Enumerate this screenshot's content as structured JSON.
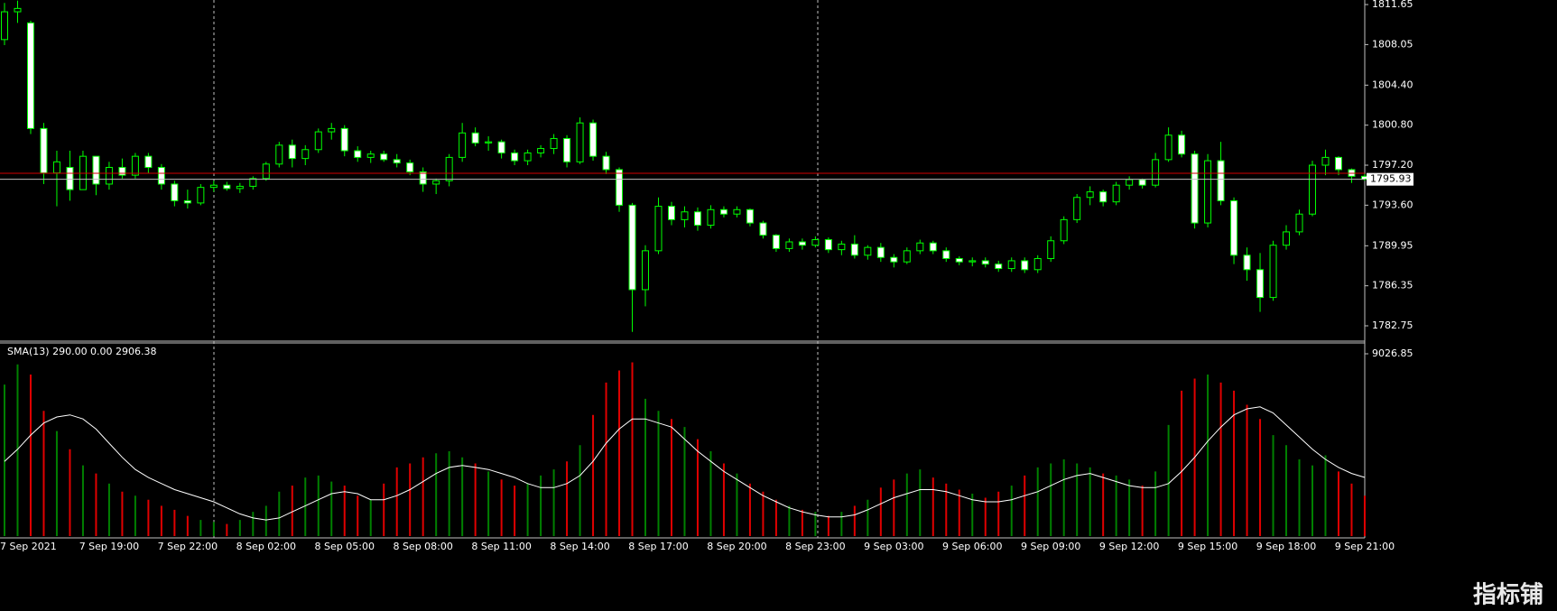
{
  "chart_data": {
    "type": "candlestick",
    "categories": [
      "7 Sep 2021",
      null,
      null,
      null,
      null,
      null,
      null,
      null,
      "7 Sep 19:00",
      null,
      null,
      null,
      null,
      null,
      "7 Sep 22:00",
      null,
      null,
      null,
      null,
      null,
      "8 Sep 02:00",
      null,
      null,
      null,
      null,
      null,
      "8 Sep 05:00",
      null,
      null,
      null,
      null,
      null,
      "8 Sep 08:00",
      null,
      null,
      null,
      null,
      null,
      "8 Sep 11:00",
      null,
      null,
      null,
      null,
      null,
      "8 Sep 14:00",
      null,
      null,
      null,
      null,
      null,
      "8 Sep 17:00",
      null,
      null,
      null,
      null,
      null,
      "8 Sep 20:00",
      null,
      null,
      null,
      null,
      null,
      "8 Sep 23:00",
      null,
      null,
      null,
      null,
      null,
      "9 Sep 03:00",
      null,
      null,
      null,
      null,
      null,
      "9 Sep 06:00",
      null,
      null,
      null,
      null,
      null,
      "9 Sep 09:00",
      null,
      null,
      null,
      null,
      null,
      "9 Sep 12:00",
      null,
      null,
      null,
      null,
      null,
      "9 Sep 15:00",
      null,
      null,
      null,
      null,
      null,
      "9 Sep 18:00",
      null,
      null,
      null,
      null,
      null,
      "9 Sep 21:00"
    ],
    "open": [
      1808.5,
      1811,
      1810,
      1800.5,
      1796.5,
      1797,
      1795,
      1798,
      1795.5,
      1797,
      1796.3,
      1798,
      1797,
      1795.5,
      1794,
      1793.8,
      1795.2,
      1795.4,
      1795.1,
      1795.3,
      1796,
      1797.3,
      1799,
      1797.8,
      1798.6,
      1800.2,
      1800.5,
      1798.5,
      1797.9,
      1798.2,
      1797.7,
      1797.4,
      1796.6,
      1795.5,
      1795.8,
      1797.9,
      1800.1,
      1799.2,
      1799.3,
      1798.3,
      1797.6,
      1798.3,
      1798.7,
      1799.6,
      1797.5,
      1801,
      1798,
      1796.8,
      1793.6,
      1786,
      1789.5,
      1793.5,
      1792.3,
      1793,
      1791.8,
      1793.2,
      1792.8,
      1793.2,
      1792,
      1790.9,
      1789.7,
      1790.3,
      1790,
      1790.5,
      1789.6,
      1790.1,
      1789.1,
      1789.8,
      1788.9,
      1788.5,
      1789.5,
      1790.2,
      1789.5,
      1788.8,
      1788.5,
      1788.6,
      1788.3,
      1787.9,
      1788.6,
      1787.8,
      1788.8,
      1790.4,
      1792.3,
      1794.3,
      1794.8,
      1793.9,
      1795.4,
      1795.9,
      1795.4,
      1797.7,
      1799.9,
      1798.2,
      1792,
      1797.6,
      1794,
      1789.1,
      1787.8,
      1785.3,
      1790,
      1791.2,
      1792.8,
      1797.2,
      1797.9,
      1796.8,
      1796.2
    ],
    "high": [
      1811.8,
      1812,
      1810.2,
      1801,
      1798.5,
      1798.5,
      1798.5,
      1798,
      1797.5,
      1797.8,
      1798.3,
      1798.3,
      1797.3,
      1795.8,
      1795,
      1795.5,
      1795.8,
      1795.7,
      1795.6,
      1796.2,
      1797.5,
      1799.3,
      1799.5,
      1799,
      1800.5,
      1801,
      1800.8,
      1798.9,
      1798.5,
      1798.5,
      1798.2,
      1797.7,
      1797,
      1796,
      1798.2,
      1801,
      1800.6,
      1799.8,
      1799.5,
      1798.6,
      1798.6,
      1799,
      1800,
      1799.9,
      1801.5,
      1801.3,
      1798.4,
      1797,
      1793.8,
      1790,
      1794.3,
      1793.9,
      1793.5,
      1793.4,
      1793.6,
      1793.5,
      1793.5,
      1793.3,
      1792.2,
      1791,
      1790.6,
      1790.6,
      1790.8,
      1790.7,
      1790.4,
      1790.9,
      1790,
      1790.2,
      1789.2,
      1789.8,
      1790.5,
      1790.4,
      1789.8,
      1789,
      1788.9,
      1788.9,
      1788.6,
      1788.9,
      1788.9,
      1789.1,
      1790.8,
      1792.6,
      1794.6,
      1795.3,
      1795,
      1795.7,
      1796.2,
      1796,
      1798.3,
      1800.6,
      1800.3,
      1798.5,
      1798.2,
      1799.3,
      1794.3,
      1789.8,
      1789.3,
      1790.4,
      1791.8,
      1793.2,
      1797.6,
      1798.6,
      1798,
      1796.9,
      1796.4
    ],
    "low": [
      1808,
      1810,
      1800,
      1795.5,
      1793.5,
      1794,
      1795,
      1794.5,
      1795,
      1796,
      1796,
      1796.5,
      1795,
      1793.5,
      1793.3,
      1793.6,
      1794.8,
      1794.9,
      1794.7,
      1795,
      1795.8,
      1797,
      1797,
      1797.2,
      1798.3,
      1799.5,
      1798,
      1797.5,
      1797.4,
      1797.5,
      1797,
      1796.3,
      1794.8,
      1794.6,
      1795.3,
      1797.5,
      1798.9,
      1798.5,
      1797.8,
      1797.2,
      1797.2,
      1797.9,
      1798.2,
      1797,
      1797.3,
      1797.6,
      1796.4,
      1793,
      1782.2,
      1784.5,
      1789.2,
      1791.8,
      1791.6,
      1791.3,
      1791.5,
      1792.5,
      1792.5,
      1791.7,
      1790.6,
      1789.4,
      1789.4,
      1789.6,
      1789.8,
      1789.3,
      1789.1,
      1788.8,
      1788.7,
      1788.5,
      1788,
      1788.3,
      1789.2,
      1789.2,
      1788.5,
      1788.2,
      1788.1,
      1788,
      1787.6,
      1787.6,
      1787.5,
      1787.5,
      1788.5,
      1790.1,
      1792,
      1793.6,
      1793.5,
      1793.6,
      1795,
      1795.1,
      1795.2,
      1797.5,
      1797.9,
      1791.5,
      1791.6,
      1793.6,
      1788.3,
      1786.8,
      1784,
      1785,
      1789.6,
      1790.9,
      1792.6,
      1796.3,
      1796.3,
      1795.6,
      1795.8
    ],
    "close": [
      1811,
      1811.3,
      1800.5,
      1796.5,
      1797.5,
      1795,
      1798,
      1795.5,
      1797,
      1796.3,
      1798,
      1797,
      1795.5,
      1794,
      1793.8,
      1795.2,
      1795.4,
      1795.1,
      1795.3,
      1796,
      1797.3,
      1799,
      1797.8,
      1798.6,
      1800.2,
      1800.5,
      1798.5,
      1797.9,
      1798.2,
      1797.7,
      1797.4,
      1796.6,
      1795.5,
      1795.8,
      1797.9,
      1800.1,
      1799.2,
      1799.3,
      1798.3,
      1797.6,
      1798.3,
      1798.7,
      1799.6,
      1797.5,
      1801,
      1798,
      1796.8,
      1793.6,
      1786,
      1789.5,
      1793.5,
      1792.3,
      1793,
      1791.8,
      1793.2,
      1792.8,
      1793.2,
      1792,
      1790.9,
      1789.7,
      1790.3,
      1790,
      1790.5,
      1789.6,
      1790.1,
      1789.1,
      1789.8,
      1788.9,
      1788.5,
      1789.5,
      1790.2,
      1789.5,
      1788.8,
      1788.5,
      1788.6,
      1788.3,
      1787.9,
      1788.6,
      1787.8,
      1788.8,
      1790.4,
      1792.3,
      1794.3,
      1794.8,
      1793.9,
      1795.4,
      1795.9,
      1795.4,
      1797.7,
      1799.9,
      1798.2,
      1792,
      1797.6,
      1794,
      1789.1,
      1787.8,
      1785.3,
      1790,
      1791.2,
      1792.8,
      1797.2,
      1797.9,
      1796.8,
      1796.2,
      1795.93
    ],
    "candle_color": "#00ff00",
    "bear_fill": "#ffffff",
    "ylim": [
      1781.45,
      1812.06
    ],
    "yticks": [
      1811.65,
      1808.05,
      {
        "value": 1804.4,
        "label": "1804.40"
      },
      {
        "value": 1800.8,
        "label": "1800.80"
      },
      {
        "value": 1797.2,
        "label": "1797.20"
      },
      {
        "value": 1793.6,
        "label": "1793.60"
      },
      1789.95,
      1786.35,
      1782.75
    ],
    "last_price": 1795.93,
    "ask_price": 1796.47,
    "ask_color": "#d00000",
    "volume_panel": {
      "label": "SMA(13) 290.00 0.00 2906.38",
      "volumes": [
        7500,
        8500,
        8000,
        6200,
        5200,
        4300,
        3500,
        3100,
        2600,
        2200,
        2000,
        1800,
        1500,
        1300,
        1000,
        800,
        700,
        600,
        800,
        1200,
        1500,
        2200,
        2500,
        2900,
        3000,
        2700,
        2500,
        2000,
        1800,
        2600,
        3400,
        3600,
        3900,
        4100,
        4200,
        3900,
        3600,
        3200,
        2800,
        2500,
        2600,
        3000,
        3300,
        3700,
        4500,
        6000,
        7600,
        8200,
        8600,
        6800,
        6200,
        5800,
        5400,
        4800,
        4200,
        3600,
        3100,
        2600,
        2200,
        1800,
        1500,
        1300,
        1200,
        1000,
        1200,
        1500,
        1800,
        2400,
        2800,
        3100,
        3300,
        2900,
        2600,
        2300,
        2100,
        1900,
        2200,
        2500,
        3000,
        3400,
        3600,
        3800,
        3600,
        3400,
        3100,
        3000,
        2800,
        2500,
        3200,
        5500,
        7200,
        7800,
        8000,
        7600,
        7200,
        6500,
        5800,
        5000,
        4500,
        3800,
        3500,
        4000,
        3200,
        2600,
        2000
      ],
      "up_color": "#008000",
      "down_color": "#e00000",
      "sma": [
        3700,
        4300,
        5000,
        5600,
        5900,
        6000,
        5800,
        5300,
        4600,
        3900,
        3300,
        2900,
        2600,
        2300,
        2100,
        1900,
        1700,
        1400,
        1100,
        900,
        800,
        900,
        1200,
        1500,
        1800,
        2100,
        2200,
        2100,
        1800,
        1800,
        2000,
        2300,
        2700,
        3100,
        3400,
        3500,
        3400,
        3300,
        3100,
        2900,
        2600,
        2400,
        2400,
        2600,
        3000,
        3700,
        4600,
        5300,
        5800,
        5800,
        5600,
        5400,
        4800,
        4200,
        3700,
        3200,
        2800,
        2400,
        2000,
        1700,
        1400,
        1200,
        1050,
        950,
        950,
        1050,
        1300,
        1600,
        1900,
        2100,
        2300,
        2300,
        2200,
        2000,
        1800,
        1700,
        1700,
        1800,
        2000,
        2200,
        2500,
        2800,
        3000,
        3100,
        2900,
        2700,
        2500,
        2400,
        2400,
        2600,
        3200,
        3900,
        4700,
        5400,
        6000,
        6300,
        6400,
        6100,
        5500,
        4900,
        4300,
        3800,
        3400,
        3100,
        2906.38
      ],
      "sma_color": "#ffffff",
      "ylim": [
        0,
        9026.85
      ],
      "yticks": [
        9026.85
      ]
    },
    "watermark": "指标铺"
  }
}
